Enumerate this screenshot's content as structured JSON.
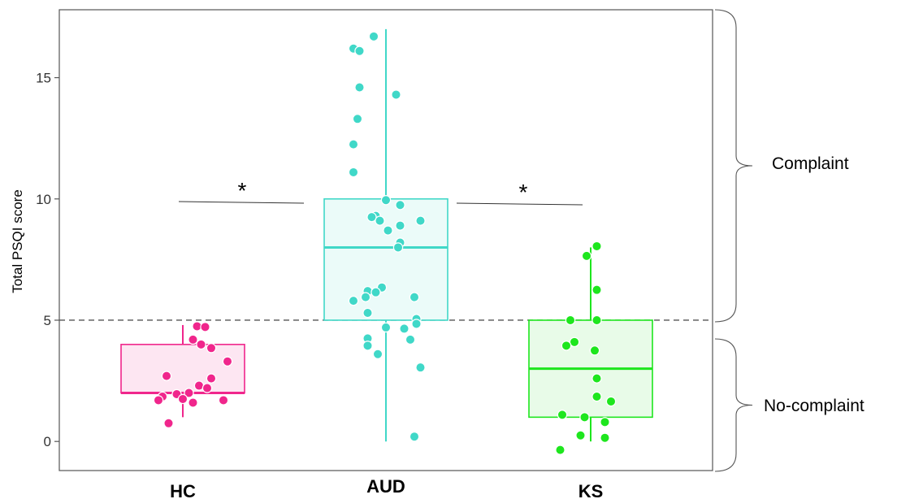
{
  "chart_data": {
    "type": "box",
    "ylabel": "Total PSQI score",
    "xlabel": "",
    "ylim": [
      -1.2,
      17.8
    ],
    "yticks": [
      0,
      5,
      10,
      15
    ],
    "grid": false,
    "reference_line": {
      "y": 5,
      "style": "dashed",
      "color": "#555555"
    },
    "categories": [
      "HC",
      "AUD",
      "KS"
    ],
    "colors": {
      "HC": "#f0268c",
      "AUD": "#40d8c8",
      "KS": "#1ee61e"
    },
    "fills": {
      "HC": "#fde6f2",
      "AUD": "#ebfbf9",
      "KS": "#e8fbe8"
    },
    "boxes": [
      {
        "category": "HC",
        "whisker_low": 1,
        "q1": 2,
        "median": 2,
        "q3": 4,
        "whisker_high": 4.8
      },
      {
        "category": "AUD",
        "whisker_low": 0,
        "q1": 5,
        "median": 8,
        "q3": 10,
        "whisker_high": 17
      },
      {
        "category": "KS",
        "whisker_low": 0,
        "q1": 1,
        "median": 3,
        "q3": 5,
        "whisker_high": 8
      }
    ],
    "points": {
      "HC": [
        {
          "dx": 0.07,
          "y": 4.75
        },
        {
          "dx": 0.11,
          "y": 4.72
        },
        {
          "dx": 0.05,
          "y": 4.2
        },
        {
          "dx": 0.09,
          "y": 4.0
        },
        {
          "dx": 0.14,
          "y": 3.85
        },
        {
          "dx": 0.22,
          "y": 3.3
        },
        {
          "dx": -0.08,
          "y": 2.7
        },
        {
          "dx": 0.14,
          "y": 2.6
        },
        {
          "dx": 0.08,
          "y": 2.3
        },
        {
          "dx": 0.12,
          "y": 2.2
        },
        {
          "dx": 0.03,
          "y": 2.0
        },
        {
          "dx": -0.03,
          "y": 1.95
        },
        {
          "dx": -0.1,
          "y": 1.85
        },
        {
          "dx": -0.12,
          "y": 1.7
        },
        {
          "dx": 0.2,
          "y": 1.7
        },
        {
          "dx": 0.0,
          "y": 1.75
        },
        {
          "dx": 0.05,
          "y": 1.6
        },
        {
          "dx": -0.07,
          "y": 0.75
        }
      ],
      "AUD": [
        {
          "dx": -0.06,
          "y": 16.7
        },
        {
          "dx": -0.16,
          "y": 16.2
        },
        {
          "dx": -0.13,
          "y": 16.1
        },
        {
          "dx": -0.13,
          "y": 14.6
        },
        {
          "dx": 0.05,
          "y": 14.3
        },
        {
          "dx": -0.14,
          "y": 13.3
        },
        {
          "dx": -0.16,
          "y": 12.25
        },
        {
          "dx": -0.16,
          "y": 11.1
        },
        {
          "dx": 0.0,
          "y": 9.95
        },
        {
          "dx": 0.07,
          "y": 9.75
        },
        {
          "dx": -0.05,
          "y": 9.3
        },
        {
          "dx": -0.07,
          "y": 9.25
        },
        {
          "dx": -0.03,
          "y": 9.1
        },
        {
          "dx": 0.17,
          "y": 9.1
        },
        {
          "dx": 0.07,
          "y": 8.9
        },
        {
          "dx": 0.01,
          "y": 8.7
        },
        {
          "dx": 0.07,
          "y": 8.2
        },
        {
          "dx": 0.06,
          "y": 8.0
        },
        {
          "dx": -0.02,
          "y": 6.35
        },
        {
          "dx": -0.09,
          "y": 6.2
        },
        {
          "dx": -0.05,
          "y": 6.15
        },
        {
          "dx": 0.14,
          "y": 5.95
        },
        {
          "dx": -0.1,
          "y": 5.95
        },
        {
          "dx": -0.16,
          "y": 5.8
        },
        {
          "dx": -0.09,
          "y": 5.3
        },
        {
          "dx": 0.15,
          "y": 5.05
        },
        {
          "dx": 0.15,
          "y": 4.85
        },
        {
          "dx": 0.0,
          "y": 4.7
        },
        {
          "dx": 0.09,
          "y": 4.65
        },
        {
          "dx": -0.09,
          "y": 4.25
        },
        {
          "dx": 0.12,
          "y": 4.2
        },
        {
          "dx": -0.09,
          "y": 3.95
        },
        {
          "dx": -0.04,
          "y": 3.6
        },
        {
          "dx": 0.17,
          "y": 3.05
        },
        {
          "dx": 0.14,
          "y": 0.2
        }
      ],
      "KS": [
        {
          "dx": 0.03,
          "y": 8.05
        },
        {
          "dx": -0.02,
          "y": 7.65
        },
        {
          "dx": 0.03,
          "y": 6.25
        },
        {
          "dx": -0.1,
          "y": 5.0
        },
        {
          "dx": 0.03,
          "y": 5.0
        },
        {
          "dx": -0.08,
          "y": 4.1
        },
        {
          "dx": -0.12,
          "y": 3.95
        },
        {
          "dx": 0.02,
          "y": 3.75
        },
        {
          "dx": 0.03,
          "y": 2.6
        },
        {
          "dx": 0.03,
          "y": 1.85
        },
        {
          "dx": 0.1,
          "y": 1.65
        },
        {
          "dx": -0.14,
          "y": 1.1
        },
        {
          "dx": -0.03,
          "y": 1.0
        },
        {
          "dx": 0.07,
          "y": 0.8
        },
        {
          "dx": -0.05,
          "y": 0.25
        },
        {
          "dx": 0.07,
          "y": 0.15
        },
        {
          "dx": -0.15,
          "y": -0.35
        }
      ]
    },
    "significance": [
      {
        "from": "HC",
        "to": "AUD",
        "label": "*"
      },
      {
        "from": "AUD",
        "to": "KS",
        "label": "*"
      }
    ],
    "brackets": [
      {
        "label": "Complaint",
        "range": [
          5,
          17.8
        ]
      },
      {
        "label": "No-complaint",
        "range": [
          -1.2,
          4.4
        ]
      }
    ]
  }
}
